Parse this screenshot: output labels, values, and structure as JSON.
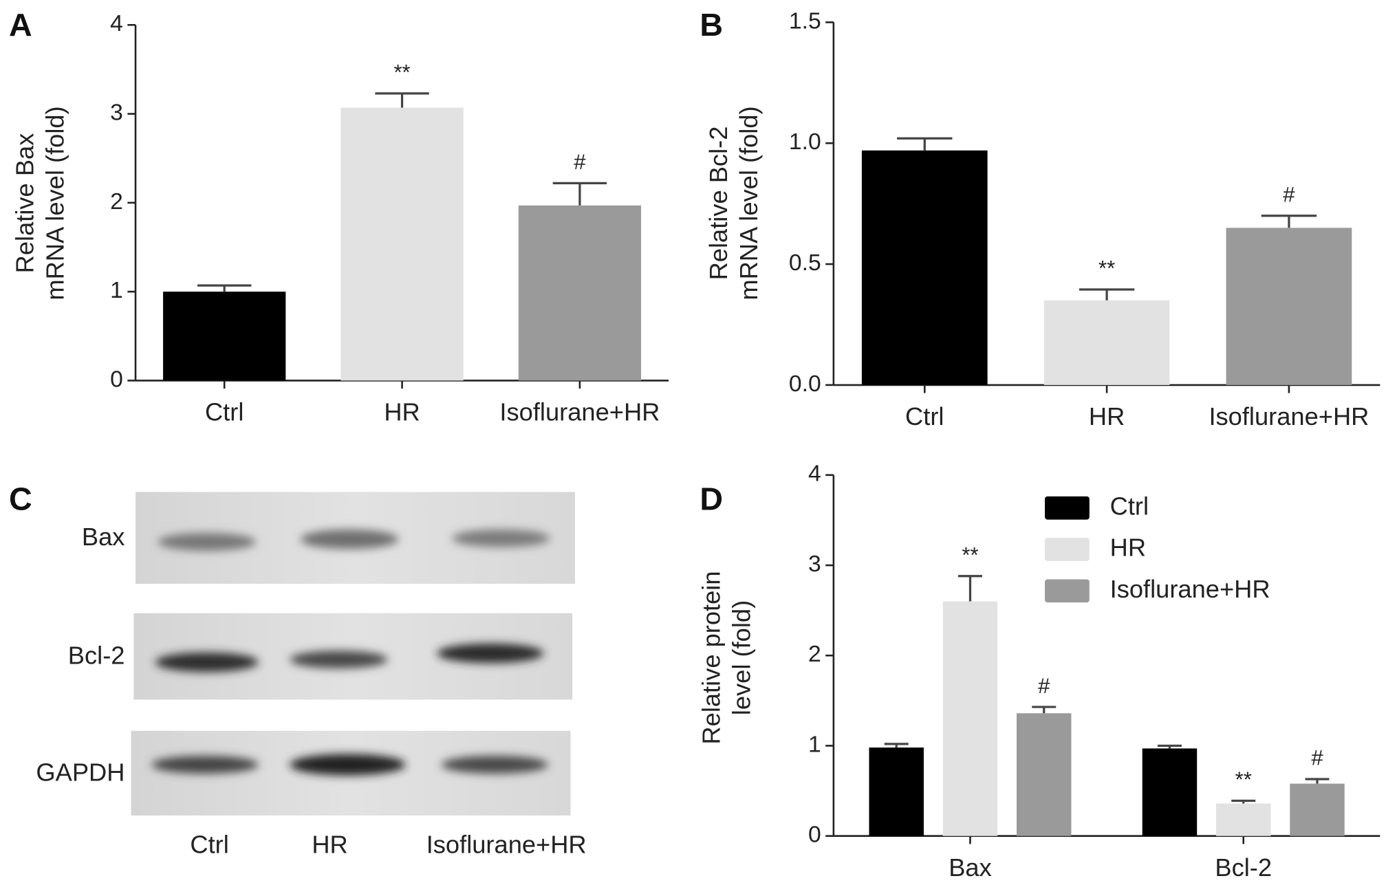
{
  "chart_data": [
    {
      "type": "bar",
      "panel": "A",
      "ylabel": [
        "Relative Bax",
        "mRNA level (fold)"
      ],
      "categories": [
        "Ctrl",
        "HR",
        "Isoflurane+HR"
      ],
      "values": [
        1.0,
        3.07,
        1.97
      ],
      "errors": [
        0.07,
        0.16,
        0.25
      ],
      "colors": [
        "#000000",
        "#e2e2e2",
        "#9a9a9a"
      ],
      "ylim": [
        0,
        4
      ],
      "yticks": [
        0,
        1,
        2,
        3,
        4
      ],
      "annotations": [
        {
          "text": "**",
          "category": "HR"
        },
        {
          "text": "#",
          "category": "Isoflurane+HR"
        }
      ]
    },
    {
      "type": "bar",
      "panel": "B",
      "ylabel": [
        "Relative Bcl-2",
        "mRNA level (fold)"
      ],
      "categories": [
        "Ctrl",
        "HR",
        "Isoflurane+HR"
      ],
      "values": [
        0.97,
        0.35,
        0.65
      ],
      "errors": [
        0.05,
        0.045,
        0.05
      ],
      "colors": [
        "#000000",
        "#e2e2e2",
        "#9a9a9a"
      ],
      "ylim": [
        0,
        1.5
      ],
      "yticks": [
        {
          "value": 0,
          "label": "0.0"
        },
        0.5,
        {
          "value": 1,
          "label": "1.0"
        },
        1.5
      ],
      "annotations": [
        {
          "text": "**",
          "category": "HR"
        },
        {
          "text": "#",
          "category": "Isoflurane+HR"
        }
      ]
    },
    {
      "type": "grouped_bar",
      "panel": "D",
      "ylabel": [
        "Relative protein",
        "level (fold)"
      ],
      "categories": [
        "Bax",
        "Bcl-2"
      ],
      "series": [
        {
          "name": "Ctrl",
          "color": "#000000",
          "values": [
            0.98,
            0.97
          ],
          "errors": [
            0.04,
            0.03
          ]
        },
        {
          "name": "HR",
          "color": "#e2e2e2",
          "values": [
            2.6,
            0.36
          ],
          "errors": [
            0.28,
            0.03
          ]
        },
        {
          "name": "Isoflurane+HR",
          "color": "#9a9a9a",
          "values": [
            1.36,
            0.58
          ],
          "errors": [
            0.07,
            0.05
          ]
        }
      ],
      "ylim": [
        0,
        4
      ],
      "yticks": [
        0,
        1,
        2,
        3,
        4
      ],
      "annotations": [
        {
          "text": "**",
          "category": "Bax",
          "series": "HR"
        },
        {
          "text": "#",
          "category": "Bax",
          "series": "Isoflurane+HR"
        },
        {
          "text": "**",
          "category": "Bcl-2",
          "series": "HR"
        },
        {
          "text": "#",
          "category": "Bcl-2",
          "series": "Isoflurane+HR"
        }
      ]
    }
  ],
  "blot": {
    "panel": "C",
    "rows": [
      "Bax",
      "Bcl-2",
      "GAPDH"
    ],
    "lanes": [
      "Ctrl",
      "HR",
      "Isoflurane+HR"
    ]
  }
}
